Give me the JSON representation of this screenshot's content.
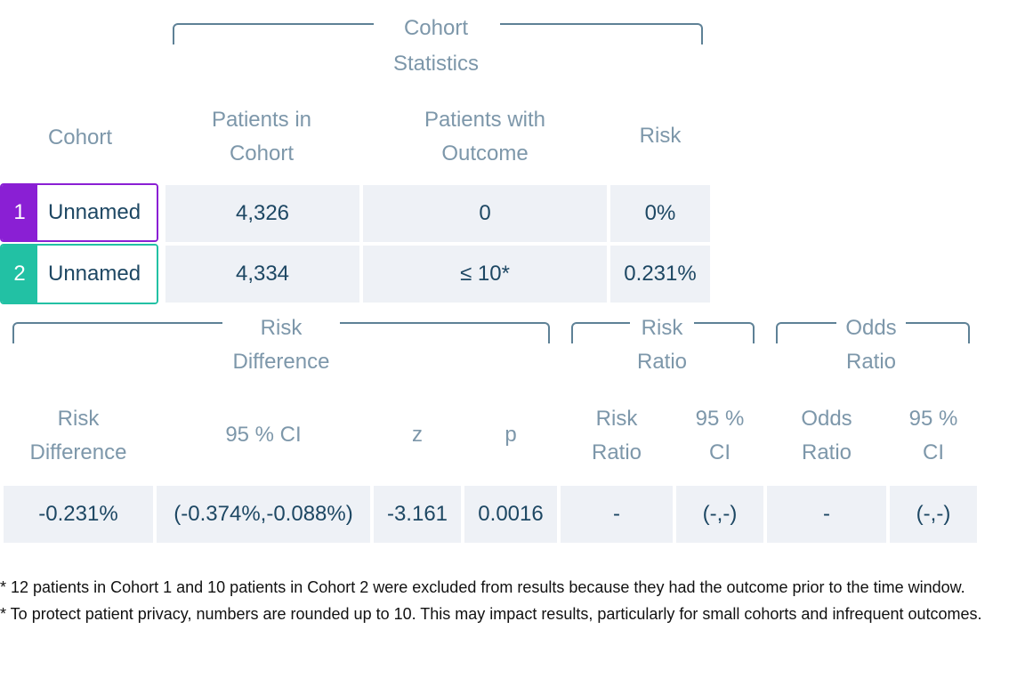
{
  "top_group": {
    "title_line1": "Cohort",
    "title_line2": "Statistics"
  },
  "top_headers": {
    "cohort": "Cohort",
    "patients_line1": "Patients in",
    "patients_line2": "Cohort",
    "outcome_line1": "Patients with",
    "outcome_line2": "Outcome",
    "risk": "Risk"
  },
  "cohorts": [
    {
      "num": "1",
      "name": "Unnamed",
      "patients": "4,326",
      "outcome": "0",
      "risk": "0%",
      "color": "#8a1fd4"
    },
    {
      "num": "2",
      "name": "Unnamed",
      "patients": "4,334",
      "outcome": "≤ 10*",
      "risk": "0.231%",
      "color": "#22c1a4"
    }
  ],
  "bottom_groups": {
    "rd_line1": "Risk",
    "rd_line2": "Difference",
    "rr_line1": "Risk",
    "rr_line2": "Ratio",
    "or_line1": "Odds",
    "or_line2": "Ratio"
  },
  "bottom_headers": {
    "rd_line1": "Risk",
    "rd_line2": "Difference",
    "ci": "95 % CI",
    "z": "z",
    "p": "p",
    "rr_line1": "Risk",
    "rr_line2": "Ratio",
    "rr_ci_line1": "95 %",
    "rr_ci_line2": "CI",
    "or_line1": "Odds",
    "or_line2": "Ratio",
    "or_ci_line1": "95 %",
    "or_ci_line2": "CI"
  },
  "results": {
    "risk_difference": "-0.231%",
    "ci": "(-0.374%,-0.088%)",
    "z": "-3.161",
    "p": "0.0016",
    "risk_ratio": "-",
    "risk_ratio_ci": "(-,-)",
    "odds_ratio": "-",
    "odds_ratio_ci": "(-,-)"
  },
  "notes": {
    "note1": "* 12 patients in Cohort 1 and 10 patients in Cohort 2 were excluded from results because they had the outcome prior to the time window.",
    "note2": "* To protect patient privacy, numbers are rounded up to 10. This may impact results, particularly for small cohorts and infrequent outcomes."
  }
}
